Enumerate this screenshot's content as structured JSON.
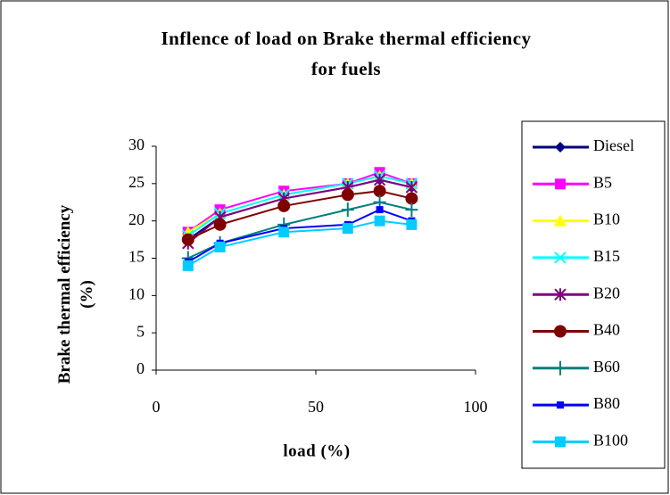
{
  "chart_data": {
    "type": "line",
    "title": "Inflence of load on Brake thermal efficiency",
    "subtitle": "for fuels",
    "x_label": "load (%)",
    "y_label": "Brake thermal efficiency (%)",
    "x": [
      10,
      20,
      40,
      60,
      70,
      80
    ],
    "xlim": [
      0,
      100
    ],
    "xticks": [
      0,
      50,
      100
    ],
    "ylim": [
      0,
      30
    ],
    "yticks": [
      0,
      5,
      10,
      15,
      20,
      25,
      30
    ],
    "series": [
      {
        "name": "Diesel",
        "color": "#000080",
        "marker": "diamond",
        "values": [
          17.5,
          20.5,
          23,
          24.5,
          25.5,
          24.5
        ]
      },
      {
        "name": "B5",
        "color": "#ff00ff",
        "marker": "square",
        "values": [
          18.5,
          21.5,
          24,
          25,
          26.5,
          25
        ]
      },
      {
        "name": "B10",
        "color": "#ffff00",
        "marker": "triangle",
        "values": [
          18.5,
          21,
          23.5,
          25,
          26,
          25
        ]
      },
      {
        "name": "B15",
        "color": "#00ffff",
        "marker": "x",
        "values": [
          18,
          21,
          23.5,
          25,
          26,
          25
        ]
      },
      {
        "name": "B20",
        "color": "#800080",
        "marker": "star",
        "values": [
          17,
          20.5,
          23,
          24.5,
          25.5,
          24.5
        ]
      },
      {
        "name": "B40",
        "color": "#800000",
        "marker": "circle",
        "values": [
          17.5,
          19.5,
          22,
          23.5,
          24,
          23
        ]
      },
      {
        "name": "B60",
        "color": "#008080",
        "marker": "plus",
        "values": [
          15,
          17,
          19.5,
          21.5,
          22.5,
          21.5
        ]
      },
      {
        "name": "B80",
        "color": "#0000ff",
        "marker": "smallsquare",
        "values": [
          14.5,
          17,
          19,
          19.5,
          21.5,
          20
        ]
      },
      {
        "name": "B100",
        "color": "#00ccff",
        "marker": "square",
        "values": [
          14,
          16.5,
          18.5,
          19,
          20,
          19.5
        ]
      }
    ]
  }
}
